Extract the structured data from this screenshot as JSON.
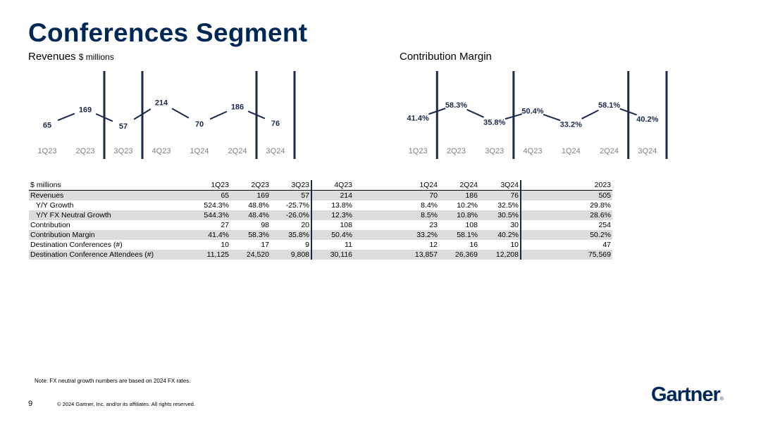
{
  "page": {
    "title": "Conferences Segment",
    "note": "Note: FX neutral growth numbers are based on 2024 FX rates.",
    "page_number": "9",
    "copyright": "© 2024 Gartner, Inc. and/or its affiliates. All rights reserved.",
    "logo_text": "Gartner",
    "logo_mark": "®"
  },
  "charts_text": {
    "revenue_title": "Revenues",
    "revenue_subtitle": "$ millions",
    "margin_title": "Contribution Margin"
  },
  "chart_data": [
    {
      "type": "line",
      "title": "Revenues",
      "subtitle": "$ millions",
      "categories": [
        "1Q23",
        "2Q23",
        "3Q23",
        "4Q23",
        "1Q24",
        "2Q24",
        "3Q24"
      ],
      "values": [
        65,
        169,
        57,
        214,
        70,
        186,
        76
      ],
      "data_labels": [
        "65",
        "169",
        "57",
        "214",
        "70",
        "186",
        "76"
      ],
      "label_position": [
        "below",
        "above",
        "below",
        "above",
        "below",
        "above",
        "below"
      ],
      "ylim": [
        0,
        260
      ],
      "grid": false,
      "line_color": "#1b2a4a",
      "separators_after": [
        "2Q23",
        "3Q23",
        "2Q24",
        "3Q24"
      ]
    },
    {
      "type": "line",
      "title": "Contribution Margin",
      "categories": [
        "1Q23",
        "2Q23",
        "3Q23",
        "4Q23",
        "1Q24",
        "2Q24",
        "3Q24"
      ],
      "values": [
        41.4,
        58.3,
        35.8,
        50.4,
        33.2,
        58.1,
        40.2
      ],
      "data_labels": [
        "41.4%",
        "58.3%",
        "35.8%",
        "50.4%",
        "33.2%",
        "58.1%",
        "40.2%"
      ],
      "label_position": [
        "below",
        "above",
        "below",
        "above",
        "below",
        "above",
        "below"
      ],
      "ylim": [
        20,
        70
      ],
      "grid": false,
      "line_color": "#1b2a4a",
      "separators_after": [
        "1Q23",
        "3Q23",
        "2Q24",
        "3Q24"
      ]
    }
  ],
  "table": {
    "headers": [
      "$ millions",
      "1Q23",
      "2Q23",
      "3Q23",
      "4Q23",
      "1Q24",
      "2Q24",
      "3Q24",
      "2023"
    ],
    "rows": [
      {
        "label": "Revenues",
        "values": [
          "65",
          "169",
          "57",
          "214",
          "70",
          "186",
          "76",
          "505"
        ],
        "shaded": true,
        "indent": false
      },
      {
        "label": "Y/Y Growth",
        "values": [
          "524.3%",
          "48.8%",
          "-25.7%",
          "13.8%",
          "8.4%",
          "10.2%",
          "32.5%",
          "29.8%"
        ],
        "shaded": false,
        "indent": true
      },
      {
        "label": "Y/Y FX Neutral Growth",
        "values": [
          "544.3%",
          "48.4%",
          "-26.0%",
          "12.3%",
          "8.5%",
          "10.8%",
          "30.5%",
          "28.6%"
        ],
        "shaded": true,
        "indent": true
      },
      {
        "label": "Contribution",
        "values": [
          "27",
          "98",
          "20",
          "108",
          "23",
          "108",
          "30",
          "254"
        ],
        "shaded": false,
        "indent": false
      },
      {
        "label": "Contribution Margin",
        "values": [
          "41.4%",
          "58.3%",
          "35.8%",
          "50.4%",
          "33.2%",
          "58.1%",
          "40.2%",
          "50.2%"
        ],
        "shaded": true,
        "indent": false
      },
      {
        "label": "Destination Conferences (#)",
        "values": [
          "10",
          "17",
          "9",
          "11",
          "12",
          "16",
          "10",
          "47"
        ],
        "shaded": false,
        "indent": false
      },
      {
        "label": "Destination Conference Attendees (#)",
        "values": [
          "11,125",
          "24,520",
          "9,808",
          "30,116",
          "13,857",
          "26,369",
          "12,208",
          "75,569"
        ],
        "shaded": true,
        "indent": false
      }
    ]
  }
}
